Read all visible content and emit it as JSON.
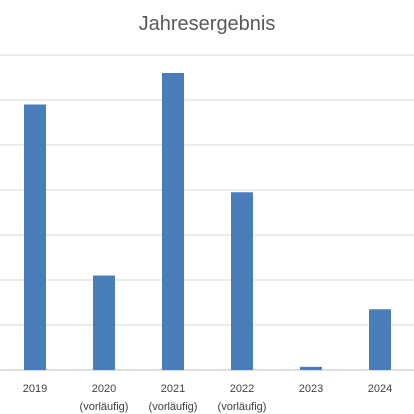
{
  "chart_data": {
    "type": "bar",
    "title": "Jahresergebnis",
    "categories": [
      "2019",
      "2020",
      "2021",
      "2022",
      "2023",
      "2024"
    ],
    "category_notes": [
      "",
      "(vorläufig)",
      "(vorläufig)",
      "(vorläufig)",
      "",
      ""
    ],
    "values": [
      59,
      21,
      66,
      39.5,
      0.7,
      13.5
    ],
    "ylim": [
      0,
      70
    ],
    "grid": true,
    "bar_color": "#4a7ebb",
    "grid_color": "#d9d9d9",
    "axis_color": "#bfbfbf"
  }
}
